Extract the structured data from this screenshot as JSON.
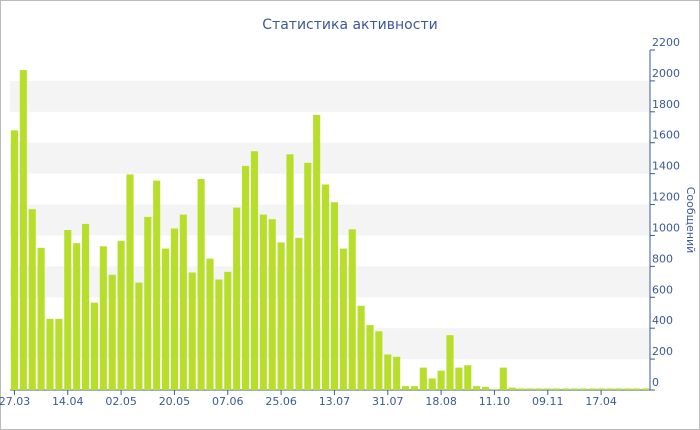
{
  "chart_data": {
    "type": "bar",
    "title": "Статистика активности",
    "y_label": "Сообщений",
    "categories": [
      "27.03",
      null,
      null,
      null,
      null,
      null,
      "14.04",
      null,
      null,
      null,
      null,
      null,
      "02.05",
      null,
      null,
      null,
      null,
      null,
      "20.05",
      null,
      null,
      null,
      null,
      null,
      "07.06",
      null,
      null,
      null,
      null,
      null,
      "25.06",
      null,
      null,
      null,
      null,
      null,
      "13.07",
      null,
      null,
      null,
      null,
      null,
      "31.07",
      null,
      null,
      null,
      null,
      null,
      "18.08",
      null,
      null,
      null,
      null,
      null,
      "11.10",
      null,
      null,
      null,
      null,
      null,
      "09.11",
      null,
      null,
      null,
      null,
      null,
      "17.04",
      null,
      null,
      null,
      null,
      null
    ],
    "values": [
      1680,
      2070,
      1170,
      920,
      460,
      460,
      1035,
      950,
      1075,
      565,
      930,
      745,
      965,
      1395,
      695,
      1120,
      1355,
      915,
      1045,
      1135,
      760,
      1365,
      850,
      715,
      765,
      1180,
      1450,
      1545,
      1135,
      1105,
      955,
      1525,
      985,
      1470,
      1780,
      1330,
      1215,
      915,
      1040,
      545,
      420,
      380,
      230,
      215,
      25,
      25,
      145,
      75,
      125,
      355,
      145,
      160,
      25,
      20,
      5,
      145,
      15,
      10,
      10,
      10,
      10,
      10,
      10,
      10,
      10,
      10,
      10,
      10,
      10,
      10,
      10,
      10
    ],
    "color": "#b8de2c",
    "ylim": [
      0,
      2200
    ],
    "yticks": [
      0,
      200,
      400,
      600,
      800,
      1000,
      1200,
      1400,
      1600,
      1800,
      2000,
      2200
    ],
    "grid": "bands"
  }
}
